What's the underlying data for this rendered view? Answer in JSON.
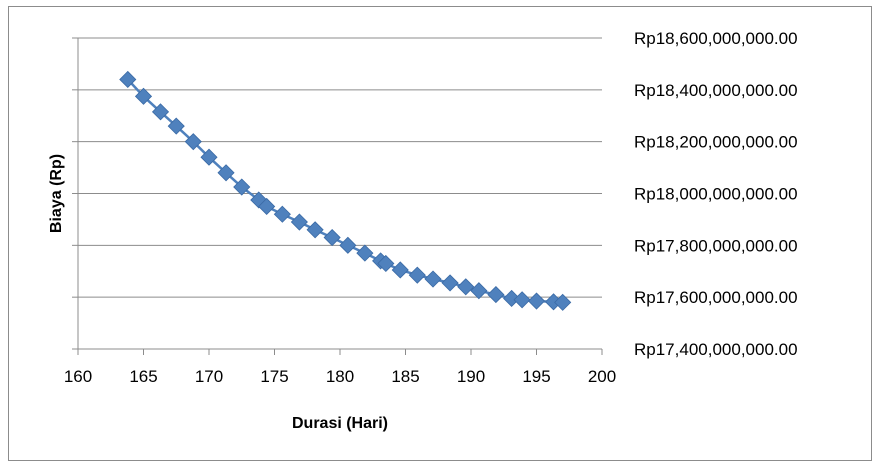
{
  "chart_data": {
    "type": "scatter",
    "title": "",
    "xlabel": "Durasi (Hari)",
    "ylabel": "Biaya (Rp)",
    "xlim": [
      160,
      200
    ],
    "ylim": [
      17400000000,
      18600000000
    ],
    "x_ticks": [
      "160",
      "165",
      "170",
      "175",
      "180",
      "185",
      "190",
      "195",
      "200"
    ],
    "y_ticks": [
      "Rp17,400,000,000.00",
      "Rp17,600,000,000.00",
      "Rp17,800,000,000.00",
      "Rp18,000,000,000.00",
      "Rp18,200,000,000.00",
      "Rp18,400,000,000.00",
      "Rp18,600,000,000.00"
    ],
    "y_tick_values": [
      17400000000,
      17600000000,
      17800000000,
      18000000000,
      18200000000,
      18400000000,
      18600000000
    ],
    "x_tick_values": [
      160,
      165,
      170,
      175,
      180,
      185,
      190,
      195,
      200
    ],
    "y_axis_side": "right",
    "grid": "horizontal",
    "legend": "none",
    "marker": "diamond",
    "color": "#4f81bd",
    "series": [
      {
        "x": [
          163.8,
          165,
          166.3,
          167.5,
          168.8,
          170,
          171.3,
          172.5,
          173.8,
          174.4,
          175.6,
          176.9,
          178.1,
          179.4,
          180.6,
          181.9,
          183.1,
          183.5,
          184.6,
          185.9,
          187.1,
          188.4,
          189.6,
          190.6,
          191.9,
          193.1,
          193.9,
          195,
          196.3,
          197
        ],
        "y": [
          18440000000,
          18375000000,
          18315000000,
          18260000000,
          18200000000,
          18140000000,
          18080000000,
          18025000000,
          17975000000,
          17950000000,
          17920000000,
          17890000000,
          17860000000,
          17830000000,
          17800000000,
          17770000000,
          17740000000,
          17730000000,
          17705000000,
          17685000000,
          17670000000,
          17655000000,
          17640000000,
          17625000000,
          17610000000,
          17595000000,
          17590000000,
          17585000000,
          17582000000,
          17580000000
        ]
      }
    ]
  }
}
